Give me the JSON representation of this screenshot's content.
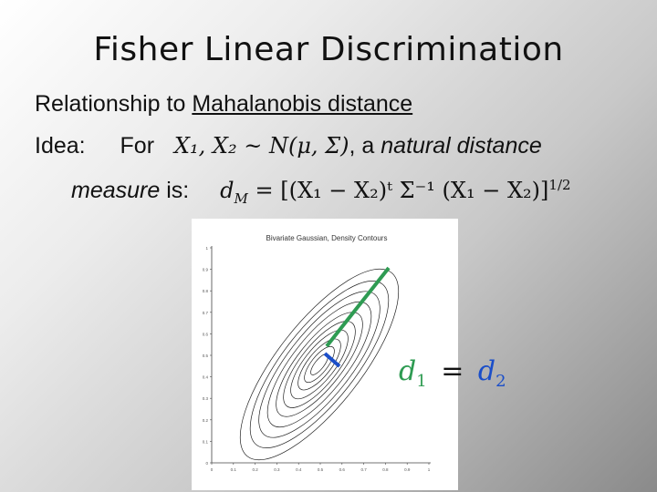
{
  "slide": {
    "title": "Fisher Linear Discrimination",
    "relationship_prefix": "Relationship to",
    "relationship_link": "Mahalanobis distance",
    "idea_label": "Idea:",
    "for_word": "For",
    "distribution_expr": "X₁, X₂ ~ N(μ, Σ)",
    "comma_a": ", a",
    "natural_distance": "natural distance",
    "measure_word": "measure",
    "is_word": "is:",
    "dm_formula": "d_M = [(X₁ − X₂)ᵗ Σ⁻¹ (X₁ − X₂)]^{1/2}"
  },
  "figure": {
    "title": "Bivariate Gaussian, Density Contours",
    "y_ticks": [
      "1",
      "0.9",
      "0.8",
      "0.7",
      "0.6",
      "0.5",
      "0.4",
      "0.3",
      "0.2",
      "0.1",
      "0"
    ],
    "x_ticks": [
      "0",
      "0.1",
      "0.2",
      "0.3",
      "0.4",
      "0.5",
      "0.6",
      "0.7",
      "0.8",
      "0.9",
      "1"
    ],
    "segment_colors": {
      "d1": "#2e9b52",
      "d2": "#1a4ec9"
    }
  },
  "equation": {
    "d1": "d",
    "d1_sub": "1",
    "equals": "=",
    "d2": "d",
    "d2_sub": "2"
  }
}
